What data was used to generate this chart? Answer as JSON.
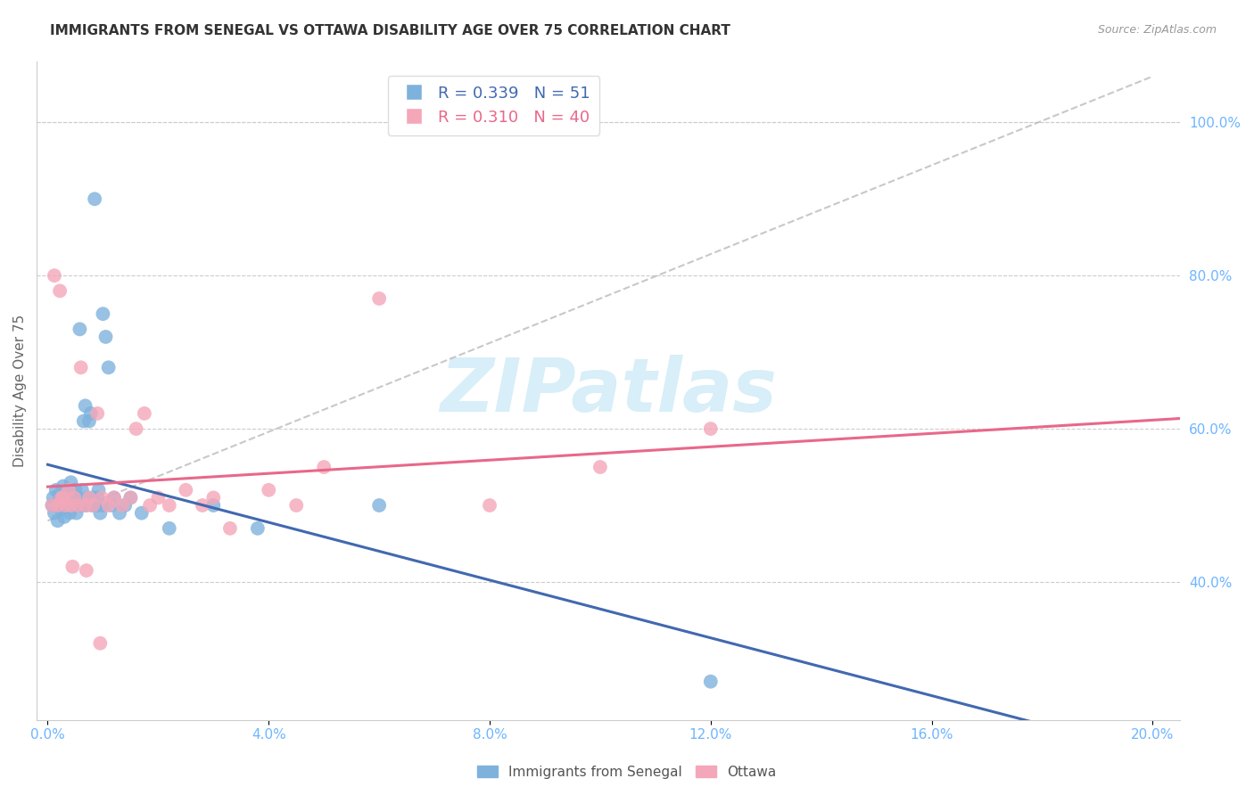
{
  "title": "IMMIGRANTS FROM SENEGAL VS OTTAWA DISABILITY AGE OVER 75 CORRELATION CHART",
  "source": "Source: ZipAtlas.com",
  "ylabel": "Disability Age Over 75",
  "legend_label1": "Immigrants from Senegal",
  "legend_label2": "Ottawa",
  "r1": 0.339,
  "n1": 51,
  "r2": 0.31,
  "n2": 40,
  "color_blue": "#7EB2DD",
  "color_pink": "#F4A7B9",
  "color_line_blue": "#4169B0",
  "color_line_pink": "#E8688A",
  "color_axis_labels": "#6EB5FF",
  "color_title": "#333333",
  "color_watermark": "#D8EEF8",
  "blue_points_x": [
    0.0008,
    0.001,
    0.0012,
    0.0015,
    0.0018,
    0.002,
    0.0022,
    0.0025,
    0.0028,
    0.003,
    0.0032,
    0.0035,
    0.0038,
    0.004,
    0.0042,
    0.0045,
    0.0048,
    0.005,
    0.0052,
    0.0055,
    0.0058,
    0.006,
    0.0062,
    0.0065,
    0.0068,
    0.007,
    0.0072,
    0.0075,
    0.0078,
    0.008,
    0.0082,
    0.0085,
    0.0088,
    0.009,
    0.0092,
    0.0095,
    0.0098,
    0.01,
    0.0105,
    0.011,
    0.0115,
    0.012,
    0.013,
    0.014,
    0.015,
    0.017,
    0.022,
    0.03,
    0.038,
    0.06,
    0.12
  ],
  "blue_points_y": [
    0.5,
    0.51,
    0.49,
    0.52,
    0.48,
    0.505,
    0.515,
    0.495,
    0.525,
    0.485,
    0.51,
    0.5,
    0.52,
    0.49,
    0.53,
    0.51,
    0.5,
    0.52,
    0.49,
    0.51,
    0.73,
    0.5,
    0.52,
    0.61,
    0.63,
    0.5,
    0.51,
    0.61,
    0.62,
    0.5,
    0.51,
    0.9,
    0.5,
    0.51,
    0.52,
    0.49,
    0.5,
    0.75,
    0.72,
    0.68,
    0.5,
    0.51,
    0.49,
    0.5,
    0.51,
    0.49,
    0.47,
    0.5,
    0.47,
    0.5,
    0.27
  ],
  "pink_points_x": [
    0.0008,
    0.0012,
    0.0018,
    0.0022,
    0.0028,
    0.0032,
    0.0038,
    0.0042,
    0.0048,
    0.0055,
    0.006,
    0.0068,
    0.0075,
    0.0082,
    0.009,
    0.0098,
    0.011,
    0.012,
    0.0135,
    0.015,
    0.016,
    0.0175,
    0.0185,
    0.02,
    0.022,
    0.025,
    0.028,
    0.03,
    0.033,
    0.04,
    0.045,
    0.05,
    0.06,
    0.08,
    0.1,
    0.12,
    0.0025,
    0.0045,
    0.007,
    0.0095
  ],
  "pink_points_y": [
    0.5,
    0.8,
    0.5,
    0.78,
    0.51,
    0.5,
    0.52,
    0.5,
    0.51,
    0.5,
    0.68,
    0.5,
    0.51,
    0.5,
    0.62,
    0.51,
    0.5,
    0.51,
    0.5,
    0.51,
    0.6,
    0.62,
    0.5,
    0.51,
    0.5,
    0.52,
    0.5,
    0.51,
    0.47,
    0.52,
    0.5,
    0.55,
    0.77,
    0.5,
    0.55,
    0.6,
    0.51,
    0.42,
    0.415,
    0.32
  ],
  "xlim": [
    -0.002,
    0.205
  ],
  "ylim": [
    0.22,
    1.08
  ],
  "yticks_right": [
    0.4,
    0.6,
    0.8,
    1.0
  ],
  "xticks": [
    0.0,
    0.04,
    0.08,
    0.12,
    0.16,
    0.2
  ]
}
